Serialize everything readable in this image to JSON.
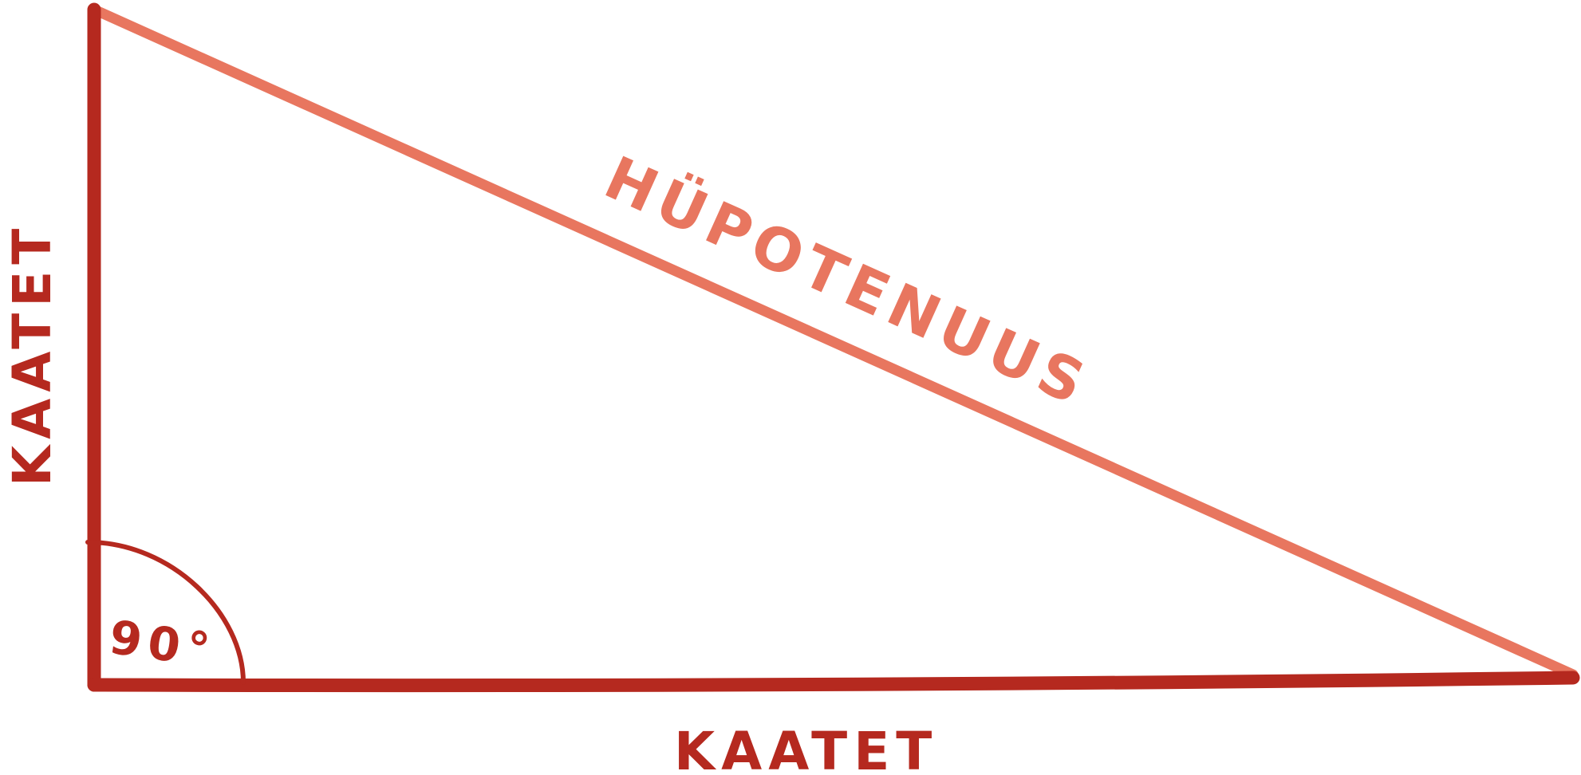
{
  "diagram": {
    "hypotenuse_label": "HÜPOTENUUS",
    "vertical_leg_label": "KAATET",
    "horizontal_leg_label": "KAATET",
    "right_angle_label": "90°",
    "colors": {
      "leg": "#b5291f",
      "hypotenuse": "#e8765f",
      "background": "#ffffff"
    }
  }
}
